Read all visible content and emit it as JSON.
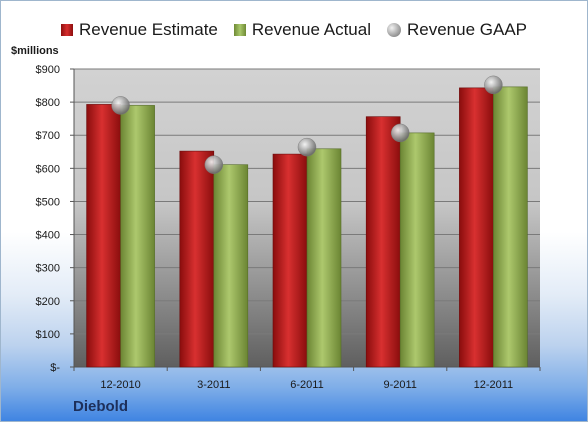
{
  "chart_data": {
    "type": "bar",
    "categories": [
      "12-2010",
      "3-2011",
      "6-2011",
      "9-2011",
      "12-2011"
    ],
    "series": [
      {
        "name": "Revenue Estimate",
        "type": "bar",
        "values": [
          793,
          652,
          643,
          756,
          843
        ]
      },
      {
        "name": "Revenue Actual",
        "type": "bar",
        "values": [
          790,
          611,
          659,
          707,
          846
        ]
      },
      {
        "name": "Revenue GAAP",
        "type": "scatter",
        "values": [
          790,
          611,
          664,
          707,
          852
        ]
      }
    ],
    "ylabel": "$millions",
    "ylim": [
      0,
      900
    ],
    "yticks": [
      0,
      100,
      200,
      300,
      400,
      500,
      600,
      700,
      800,
      900
    ],
    "ytick_labels": [
      "$-",
      "$100",
      "$200",
      "$300",
      "$400",
      "$500",
      "$600",
      "$700",
      "$800",
      "$900"
    ],
    "grid": true,
    "legend_position": "top",
    "company": "Diebold",
    "colors": {
      "estimate": "#c0191c",
      "actual": "#8fac52",
      "gaap": "#a8a8a8"
    }
  }
}
